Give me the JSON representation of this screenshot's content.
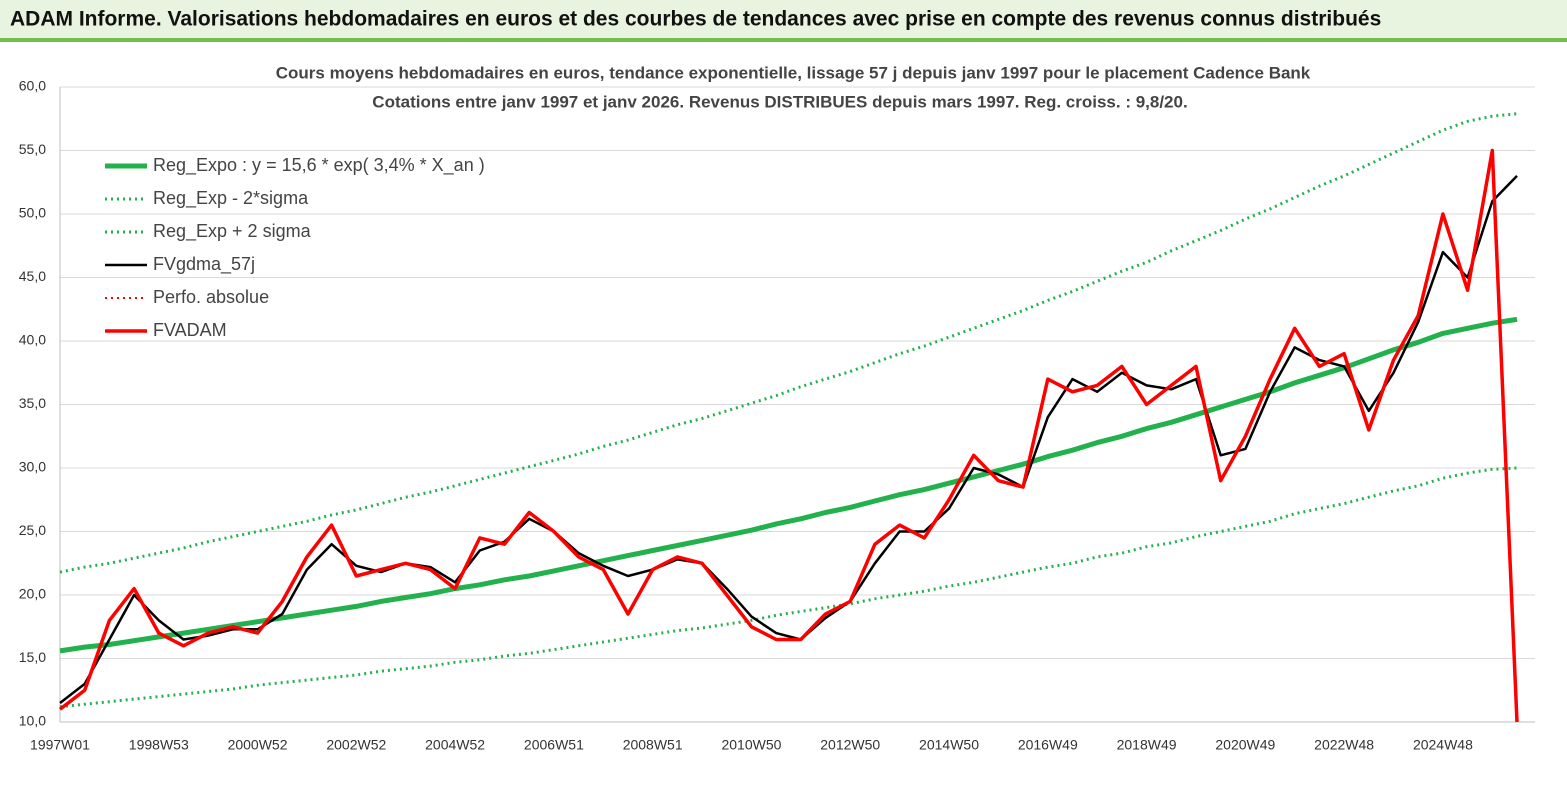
{
  "header": {
    "title": "ADAM Informe. Valorisations hebdomadaires en euros et des courbes de tendances avec prise en compte des revenus connus distribués"
  },
  "chart_data": {
    "type": "line",
    "title": "Cours moyens hebdomadaires en euros, tendance exponentielle, lissage 57 j depuis janv 1997 pour le placement Cadence Bank",
    "subtitle": "Cotations entre janv 1997 et janv 2026. Revenus DISTRIBUES depuis mars 1997. Reg. croiss. : 9,8/20.",
    "categories": [
      "1997W01",
      null,
      null,
      null,
      "1998W53",
      null,
      null,
      null,
      "2000W52",
      null,
      null,
      null,
      "2002W52",
      null,
      null,
      null,
      "2004W52",
      null,
      null,
      null,
      "2006W51",
      null,
      null,
      null,
      "2008W51",
      null,
      null,
      null,
      "2010W50",
      null,
      null,
      null,
      "2012W50",
      null,
      null,
      null,
      "2014W50",
      null,
      null,
      null,
      "2016W49",
      null,
      null,
      null,
      "2018W49",
      null,
      null,
      null,
      "2020W49",
      null,
      null,
      null,
      "2022W48",
      null,
      null,
      null,
      "2024W48",
      null,
      null,
      null
    ],
    "ylim": [
      10,
      60
    ],
    "yticks": [
      {
        "value": 10,
        "label": "10,0"
      },
      {
        "value": 15,
        "label": "15,0"
      },
      {
        "value": 20,
        "label": "20,0"
      },
      {
        "value": 25,
        "label": "25,0"
      },
      {
        "value": 30,
        "label": "30,0"
      },
      {
        "value": 35,
        "label": "35,0"
      },
      {
        "value": 40,
        "label": "40,0"
      },
      {
        "value": 45,
        "label": "45,0"
      },
      {
        "value": 50,
        "label": "50,0"
      },
      {
        "value": 55,
        "label": "55,0"
      },
      {
        "value": 60,
        "label": "60,0"
      }
    ],
    "grid": true,
    "legend": "upper left",
    "series": [
      {
        "name": "Reg_Expo : y = 15,6 * exp( 3,4% *  X_an )",
        "color": "#22b14c",
        "dash": "solid",
        "width": 5,
        "values": [
          15.6,
          15.9,
          16.1,
          16.4,
          16.7,
          17.0,
          17.3,
          17.6,
          17.9,
          18.2,
          18.5,
          18.8,
          19.1,
          19.5,
          19.8,
          20.1,
          20.5,
          20.8,
          21.2,
          21.5,
          21.9,
          22.3,
          22.7,
          23.1,
          23.5,
          23.9,
          24.3,
          24.7,
          25.1,
          25.6,
          26.0,
          26.5,
          26.9,
          27.4,
          27.9,
          28.3,
          28.8,
          29.3,
          29.8,
          30.3,
          30.9,
          31.4,
          32.0,
          32.5,
          33.1,
          33.6,
          34.2,
          34.8,
          35.4,
          36.0,
          36.7,
          37.3,
          37.9,
          38.6,
          39.3,
          39.9,
          40.6,
          41.0,
          41.4,
          41.7
        ]
      },
      {
        "name": "Reg_Exp - 2*sigma",
        "color": "#22b14c",
        "dash": "dotted",
        "width": 3,
        "values": [
          11.2,
          11.4,
          11.6,
          11.8,
          12.0,
          12.2,
          12.4,
          12.6,
          12.9,
          13.1,
          13.3,
          13.5,
          13.7,
          14.0,
          14.2,
          14.4,
          14.7,
          14.9,
          15.2,
          15.4,
          15.7,
          16.0,
          16.3,
          16.6,
          16.9,
          17.2,
          17.4,
          17.7,
          18.0,
          18.4,
          18.7,
          19.0,
          19.3,
          19.7,
          20.0,
          20.3,
          20.7,
          21.0,
          21.4,
          21.8,
          22.2,
          22.5,
          23.0,
          23.3,
          23.8,
          24.1,
          24.6,
          25.0,
          25.4,
          25.8,
          26.4,
          26.8,
          27.2,
          27.7,
          28.2,
          28.6,
          29.2,
          29.6,
          29.9,
          30.0
        ]
      },
      {
        "name": "Reg_Exp + 2 sigma",
        "color": "#22b14c",
        "dash": "dotted",
        "width": 3,
        "values": [
          21.8,
          22.2,
          22.5,
          22.9,
          23.3,
          23.7,
          24.2,
          24.6,
          25.0,
          25.4,
          25.8,
          26.3,
          26.7,
          27.2,
          27.7,
          28.1,
          28.6,
          29.1,
          29.6,
          30.1,
          30.6,
          31.1,
          31.7,
          32.2,
          32.8,
          33.4,
          33.9,
          34.5,
          35.1,
          35.7,
          36.4,
          37.0,
          37.6,
          38.3,
          39.0,
          39.6,
          40.3,
          41.0,
          41.7,
          42.4,
          43.2,
          43.9,
          44.7,
          45.5,
          46.2,
          47.1,
          47.9,
          48.7,
          49.6,
          50.4,
          51.3,
          52.2,
          53.0,
          53.9,
          54.8,
          55.7,
          56.6,
          57.3,
          57.7,
          57.9
        ]
      },
      {
        "name": "FVgdma_57j",
        "color": "#000000",
        "dash": "solid",
        "width": 2.5,
        "values": [
          11.5,
          13,
          16.5,
          20,
          18,
          16.5,
          16.8,
          17.3,
          17.3,
          18.5,
          22,
          24,
          22.3,
          21.8,
          22.5,
          22.2,
          21,
          23.5,
          24.2,
          26,
          25,
          23.3,
          22.3,
          21.5,
          22,
          22.8,
          22.5,
          20.5,
          18.3,
          17,
          16.5,
          18.2,
          19.5,
          22.5,
          25,
          25,
          26.8,
          30,
          29.5,
          28.5,
          34,
          37,
          36,
          37.5,
          36.5,
          36.2,
          37,
          31,
          31.5,
          36,
          39.5,
          38.5,
          38,
          34.5,
          37.5,
          41.5,
          47,
          45,
          51,
          53
        ]
      },
      {
        "name": "Perfo. absolue",
        "color": "#ff0000",
        "dash": "dotted",
        "width": 2,
        "values": [
          null,
          null,
          null,
          null,
          null,
          null,
          null,
          null,
          null,
          null,
          null,
          null,
          null,
          null,
          null,
          null,
          null,
          null,
          null,
          null,
          null,
          null,
          null,
          null,
          null,
          null,
          null,
          null,
          null,
          null,
          null,
          null,
          null,
          null,
          null,
          null,
          null,
          null,
          null,
          null,
          null,
          null,
          null,
          null,
          null,
          null,
          null,
          null,
          null,
          null,
          null,
          null,
          null,
          null,
          null,
          null,
          null,
          null,
          null,
          null
        ]
      },
      {
        "name": "FVADAM",
        "color": "#ff0000",
        "dash": "solid",
        "width": 3.5,
        "values": [
          11,
          12.5,
          18,
          20.5,
          17,
          16,
          17,
          17.5,
          17,
          19.5,
          23,
          25.5,
          21.5,
          22,
          22.5,
          22,
          20.5,
          24.5,
          24,
          26.5,
          25,
          23,
          22,
          18.5,
          22,
          23,
          22.5,
          20,
          17.5,
          16.5,
          16.5,
          18.5,
          19.5,
          24,
          25.5,
          24.5,
          27.5,
          31,
          29,
          28.5,
          37,
          36,
          36.5,
          38,
          35,
          36.5,
          38,
          29,
          32.5,
          37,
          41,
          38,
          39,
          33,
          38.5,
          42,
          50,
          44,
          55,
          10
        ]
      }
    ]
  }
}
